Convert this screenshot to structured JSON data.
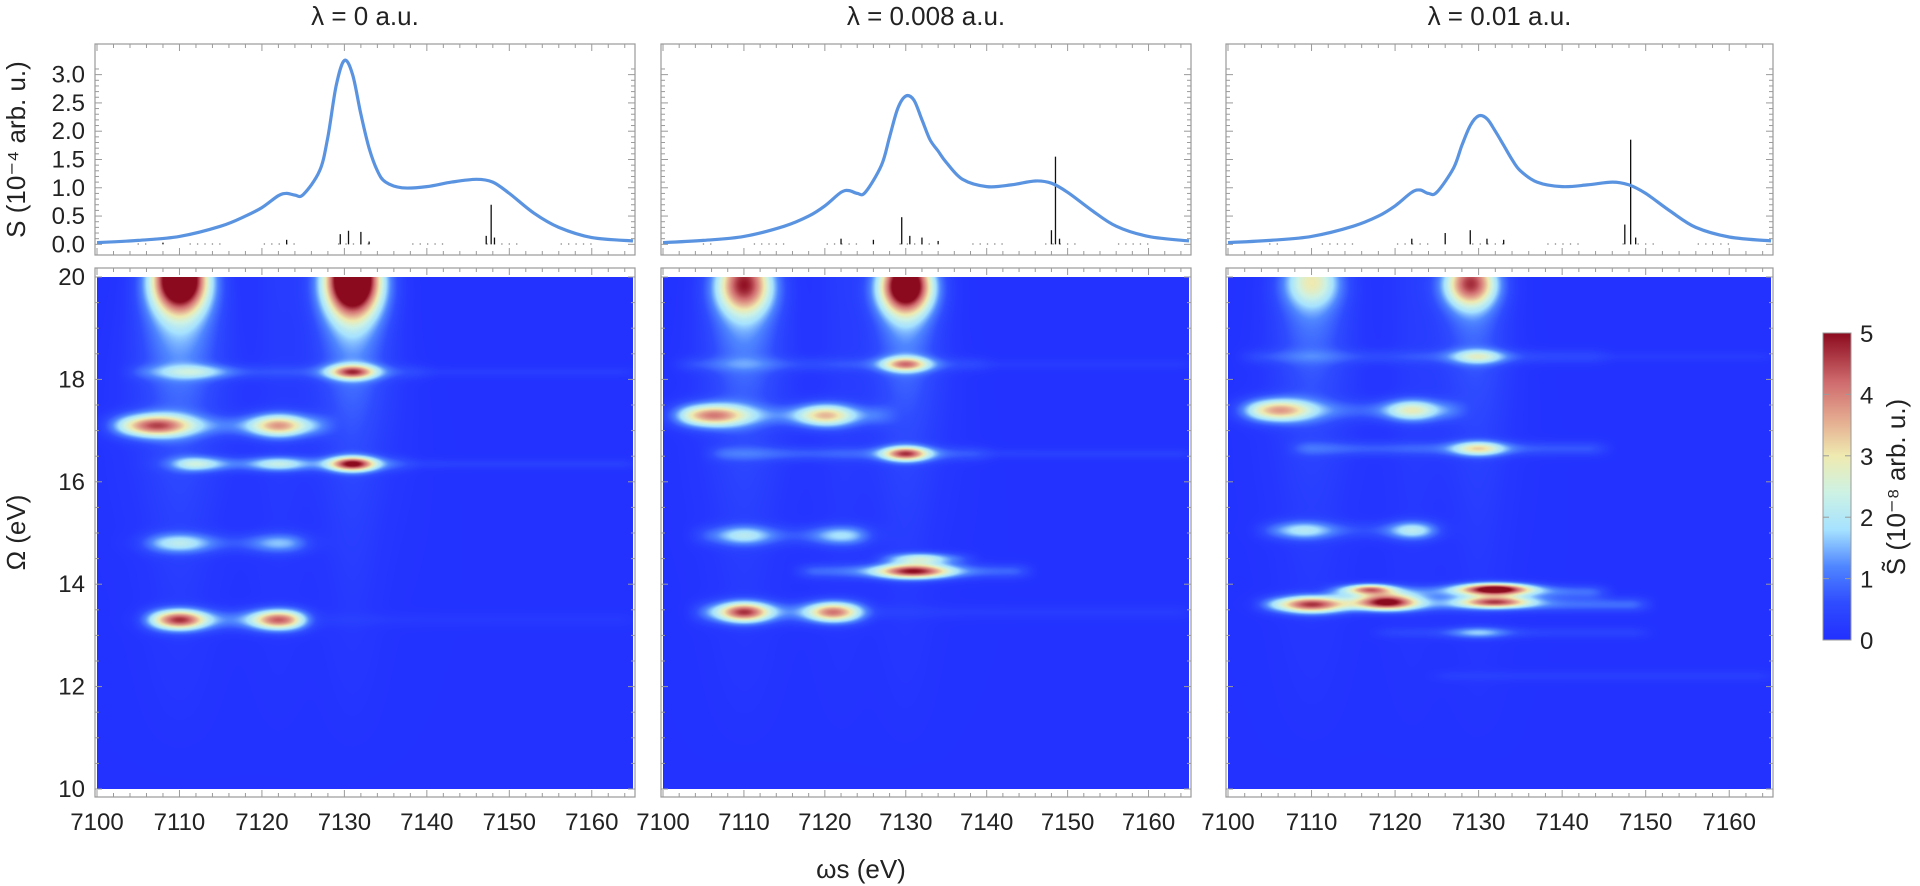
{
  "chart_data": [
    {
      "type": "line",
      "panel": 1,
      "title": "λ = 0 a.u.",
      "ylabel": "S (10⁻⁴ arb. u.)",
      "xlim": [
        7100,
        7165
      ],
      "ylim": [
        -0.1,
        3.4
      ],
      "yticks": [
        "0.0",
        "0.5",
        "1.0",
        "1.5",
        "2.0",
        "2.5",
        "3.0"
      ],
      "series": [
        {
          "x": [
            7100,
            7105,
            7110,
            7115,
            7118,
            7120,
            7122,
            7123,
            7124,
            7125,
            7127,
            7128,
            7129,
            7130,
            7131,
            7132,
            7133,
            7134,
            7135,
            7137,
            7140,
            7143,
            7146,
            7148,
            7150,
            7153,
            7156,
            7160,
            7165
          ],
          "y": [
            0.03,
            0.07,
            0.14,
            0.32,
            0.5,
            0.65,
            0.86,
            0.9,
            0.87,
            0.88,
            1.3,
            1.9,
            2.8,
            3.25,
            3.0,
            2.3,
            1.7,
            1.3,
            1.1,
            1.0,
            1.02,
            1.1,
            1.15,
            1.1,
            0.9,
            0.55,
            0.3,
            0.12,
            0.06
          ]
        }
      ],
      "sticks": [
        {
          "x": 7108,
          "y": 0.03
        },
        {
          "x": 7123,
          "y": 0.08
        },
        {
          "x": 7129.5,
          "y": 0.18
        },
        {
          "x": 7130.5,
          "y": 0.24
        },
        {
          "x": 7132,
          "y": 0.22
        },
        {
          "x": 7133,
          "y": 0.05
        },
        {
          "x": 7147.2,
          "y": 0.15
        },
        {
          "x": 7147.8,
          "y": 0.7
        },
        {
          "x": 7148.2,
          "y": 0.12
        }
      ]
    },
    {
      "type": "heatmap",
      "panel": 1,
      "xlabel": "",
      "ylabel": "Ω (eV)",
      "xlim": [
        7100,
        7165
      ],
      "ylim": [
        10,
        20
      ],
      "xticks": [
        "7100",
        "7110",
        "7120",
        "7130",
        "7140",
        "7150",
        "7160"
      ],
      "yticks": [
        "10",
        "12",
        "14",
        "16",
        "18",
        "20"
      ],
      "bands": [
        {
          "y": 13.3,
          "x0": 7106,
          "x1": 7125,
          "amp": 0.9,
          "w": 0.14
        },
        {
          "y": 13.3,
          "x0": 7128,
          "x1": 7165,
          "amp": 0.15,
          "w": 0.1
        },
        {
          "y": 14.8,
          "x0": 7106,
          "x1": 7125,
          "amp": 0.45,
          "w": 0.13
        },
        {
          "y": 16.35,
          "x0": 7110,
          "x1": 7138,
          "amp": 0.6,
          "w": 0.1
        },
        {
          "y": 16.35,
          "x0": 7138,
          "x1": 7165,
          "amp": 0.3,
          "w": 0.07
        },
        {
          "y": 17.1,
          "x0": 7102,
          "x1": 7128,
          "amp": 0.75,
          "w": 0.14
        },
        {
          "y": 18.15,
          "x0": 7104,
          "x1": 7140,
          "amp": 0.45,
          "w": 0.1
        },
        {
          "y": 18.15,
          "x0": 7140,
          "x1": 7165,
          "amp": 0.22,
          "w": 0.07
        }
      ],
      "spots": [
        {
          "x": 7110,
          "y": 13.3,
          "amp": 3.6,
          "sx": 2.3,
          "sy": 0.14
        },
        {
          "x": 7122,
          "y": 13.3,
          "amp": 3.3,
          "sx": 2.3,
          "sy": 0.14
        },
        {
          "x": 7110,
          "y": 14.8,
          "amp": 1.4,
          "sx": 2.8,
          "sy": 0.14
        },
        {
          "x": 7122,
          "y": 14.8,
          "amp": 1.0,
          "sx": 2.5,
          "sy": 0.14
        },
        {
          "x": 7112,
          "y": 16.35,
          "amp": 1.4,
          "sx": 2.5,
          "sy": 0.1
        },
        {
          "x": 7122,
          "y": 16.35,
          "amp": 1.5,
          "sx": 2.5,
          "sy": 0.1
        },
        {
          "x": 7131,
          "y": 16.35,
          "amp": 4.2,
          "sx": 2.0,
          "sy": 0.1
        },
        {
          "x": 7107,
          "y": 17.1,
          "amp": 3.3,
          "sx": 3.0,
          "sy": 0.16
        },
        {
          "x": 7122,
          "y": 17.1,
          "amp": 2.8,
          "sx": 2.5,
          "sy": 0.16
        },
        {
          "x": 7131,
          "y": 18.15,
          "amp": 3.3,
          "sx": 2.0,
          "sy": 0.1
        },
        {
          "x": 7112,
          "y": 18.15,
          "amp": 1.0,
          "sx": 3.0,
          "sy": 0.1
        },
        {
          "x": 7110,
          "y": 19.9,
          "amp": 4.4,
          "sx": 2.3,
          "sy": 0.4
        },
        {
          "x": 7131,
          "y": 19.9,
          "amp": 4.9,
          "sx": 2.4,
          "sy": 0.45
        }
      ],
      "plumes": [
        {
          "x": 7110,
          "y": 20,
          "amp": 2.4,
          "sx0": 2.5,
          "grow": 0.75,
          "decay": 1.5
        },
        {
          "x": 7131,
          "y": 20,
          "amp": 2.4,
          "sx0": 2.3,
          "grow": 0.6,
          "decay": 1.5
        }
      ],
      "columns": [
        {
          "x": 7110,
          "amp": 0.45,
          "sx": 2.8
        },
        {
          "x": 7131,
          "amp": 0.4,
          "sx": 2.3
        },
        {
          "x": 7122,
          "amp": 0.2,
          "sx": 2.2
        }
      ]
    },
    {
      "type": "line",
      "panel": 2,
      "title": "λ = 0.008 a.u.",
      "xlim": [
        7100,
        7165
      ],
      "ylim": [
        -0.1,
        3.4
      ],
      "yticks": [
        "0.0",
        "0.5",
        "1.0",
        "1.5",
        "2.0",
        "2.5",
        "3.0"
      ],
      "series": [
        {
          "x": [
            7100,
            7105,
            7110,
            7115,
            7118,
            7120,
            7122,
            7123,
            7124,
            7125,
            7127,
            7128,
            7129,
            7130,
            7131,
            7132,
            7133,
            7134,
            7135,
            7137,
            7140,
            7143,
            7146,
            7148,
            7150,
            7153,
            7156,
            7160,
            7165
          ],
          "y": [
            0.03,
            0.07,
            0.14,
            0.32,
            0.5,
            0.68,
            0.92,
            0.95,
            0.9,
            0.92,
            1.4,
            1.9,
            2.4,
            2.62,
            2.55,
            2.2,
            1.85,
            1.65,
            1.45,
            1.15,
            1.02,
            1.05,
            1.12,
            1.08,
            0.92,
            0.6,
            0.32,
            0.14,
            0.06
          ]
        }
      ],
      "sticks": [
        {
          "x": 7122,
          "y": 0.1
        },
        {
          "x": 7126,
          "y": 0.08
        },
        {
          "x": 7129.5,
          "y": 0.48
        },
        {
          "x": 7130.5,
          "y": 0.15
        },
        {
          "x": 7132,
          "y": 0.12
        },
        {
          "x": 7134,
          "y": 0.06
        },
        {
          "x": 7148,
          "y": 0.25
        },
        {
          "x": 7148.5,
          "y": 1.55
        },
        {
          "x": 7149,
          "y": 0.1
        }
      ]
    },
    {
      "type": "heatmap",
      "panel": 2,
      "xlim": [
        7100,
        7165
      ],
      "ylim": [
        10,
        20
      ],
      "xticks": [
        "7100",
        "7110",
        "7120",
        "7130",
        "7140",
        "7150",
        "7160"
      ],
      "bands": [
        {
          "y": 13.45,
          "x0": 7104,
          "x1": 7125,
          "amp": 0.8,
          "w": 0.14
        },
        {
          "y": 13.45,
          "x0": 7125,
          "x1": 7165,
          "amp": 0.2,
          "w": 0.1
        },
        {
          "y": 14.25,
          "x0": 7117,
          "x1": 7145,
          "amp": 0.8,
          "w": 0.1
        },
        {
          "y": 14.5,
          "x0": 7127,
          "x1": 7138,
          "amp": 0.5,
          "w": 0.08
        },
        {
          "y": 14.95,
          "x0": 7104,
          "x1": 7125,
          "amp": 0.5,
          "w": 0.13
        },
        {
          "y": 16.55,
          "x0": 7106,
          "x1": 7140,
          "amp": 0.65,
          "w": 0.1
        },
        {
          "y": 16.55,
          "x0": 7140,
          "x1": 7165,
          "amp": 0.3,
          "w": 0.07
        },
        {
          "y": 17.3,
          "x0": 7102,
          "x1": 7128,
          "amp": 0.7,
          "w": 0.14
        },
        {
          "y": 18.3,
          "x0": 7102,
          "x1": 7140,
          "amp": 0.45,
          "w": 0.1
        },
        {
          "y": 18.3,
          "x0": 7140,
          "x1": 7165,
          "amp": 0.2,
          "w": 0.07
        }
      ],
      "spots": [
        {
          "x": 7110,
          "y": 13.45,
          "amp": 3.7,
          "sx": 2.3,
          "sy": 0.14
        },
        {
          "x": 7121,
          "y": 13.45,
          "amp": 3.2,
          "sx": 2.3,
          "sy": 0.14
        },
        {
          "x": 7131,
          "y": 14.25,
          "amp": 4.0,
          "sx": 3.2,
          "sy": 0.1
        },
        {
          "x": 7132,
          "y": 14.5,
          "amp": 1.6,
          "sx": 2.5,
          "sy": 0.08
        },
        {
          "x": 7110,
          "y": 14.95,
          "amp": 1.3,
          "sx": 2.5,
          "sy": 0.14
        },
        {
          "x": 7122,
          "y": 14.95,
          "amp": 1.2,
          "sx": 2.5,
          "sy": 0.14
        },
        {
          "x": 7130,
          "y": 16.55,
          "amp": 3.6,
          "sx": 2.0,
          "sy": 0.1
        },
        {
          "x": 7106,
          "y": 17.3,
          "amp": 3.0,
          "sx": 3.0,
          "sy": 0.16
        },
        {
          "x": 7120,
          "y": 17.3,
          "amp": 2.6,
          "sx": 2.5,
          "sy": 0.16
        },
        {
          "x": 7130,
          "y": 18.3,
          "amp": 2.8,
          "sx": 2.0,
          "sy": 0.1
        },
        {
          "x": 7110,
          "y": 19.8,
          "amp": 2.8,
          "sx": 2.4,
          "sy": 0.35
        },
        {
          "x": 7130,
          "y": 19.8,
          "amp": 4.4,
          "sx": 2.3,
          "sy": 0.35
        }
      ],
      "plumes": [
        {
          "x": 7110,
          "y": 20,
          "amp": 1.9,
          "sx0": 2.4,
          "grow": 0.7,
          "decay": 1.5
        },
        {
          "x": 7130,
          "y": 20,
          "amp": 2.0,
          "sx0": 2.2,
          "grow": 0.6,
          "decay": 1.5
        }
      ],
      "columns": [
        {
          "x": 7110,
          "amp": 0.4,
          "sx": 2.8
        },
        {
          "x": 7130,
          "amp": 0.35,
          "sx": 2.3
        },
        {
          "x": 7122,
          "amp": 0.2,
          "sx": 2.2
        }
      ]
    },
    {
      "type": "line",
      "panel": 3,
      "title": "λ = 0.01 a.u.",
      "xlim": [
        7100,
        7165
      ],
      "ylim": [
        -0.1,
        3.4
      ],
      "yticks": [
        "0.0",
        "0.5",
        "1.0",
        "1.5",
        "2.0",
        "2.5",
        "3.0"
      ],
      "series": [
        {
          "x": [
            7100,
            7105,
            7110,
            7115,
            7118,
            7120,
            7122,
            7123,
            7124,
            7125,
            7127,
            7128,
            7129,
            7130,
            7131,
            7132,
            7133,
            7134,
            7135,
            7137,
            7140,
            7143,
            7146,
            7148,
            7150,
            7153,
            7156,
            7160,
            7165
          ],
          "y": [
            0.03,
            0.07,
            0.14,
            0.32,
            0.5,
            0.68,
            0.92,
            0.96,
            0.9,
            0.92,
            1.35,
            1.75,
            2.1,
            2.27,
            2.22,
            2.0,
            1.75,
            1.5,
            1.3,
            1.1,
            1.02,
            1.05,
            1.1,
            1.05,
            0.9,
            0.58,
            0.3,
            0.13,
            0.06
          ]
        }
      ],
      "sticks": [
        {
          "x": 7122,
          "y": 0.1
        },
        {
          "x": 7126,
          "y": 0.2
        },
        {
          "x": 7129,
          "y": 0.25
        },
        {
          "x": 7131,
          "y": 0.1
        },
        {
          "x": 7133,
          "y": 0.08
        },
        {
          "x": 7147.5,
          "y": 0.35
        },
        {
          "x": 7148.2,
          "y": 1.85
        },
        {
          "x": 7148.8,
          "y": 0.12
        }
      ]
    },
    {
      "type": "heatmap",
      "panel": 3,
      "xlim": [
        7100,
        7165
      ],
      "ylim": [
        10,
        20
      ],
      "xticks": [
        "7100",
        "7110",
        "7120",
        "7130",
        "7140",
        "7150",
        "7160"
      ],
      "bands": [
        {
          "y": 12.2,
          "x0": 7125,
          "x1": 7165,
          "amp": 0.25,
          "w": 0.08
        },
        {
          "y": 13.05,
          "x0": 7118,
          "x1": 7150,
          "amp": 0.35,
          "w": 0.08
        },
        {
          "y": 13.6,
          "x0": 7104,
          "x1": 7150,
          "amp": 0.9,
          "w": 0.1
        },
        {
          "y": 13.85,
          "x0": 7112,
          "x1": 7145,
          "amp": 0.9,
          "w": 0.09
        },
        {
          "y": 15.05,
          "x0": 7104,
          "x1": 7125,
          "amp": 0.5,
          "w": 0.12
        },
        {
          "y": 16.65,
          "x0": 7108,
          "x1": 7145,
          "amp": 0.65,
          "w": 0.1
        },
        {
          "y": 17.4,
          "x0": 7102,
          "x1": 7128,
          "amp": 0.65,
          "w": 0.14
        },
        {
          "y": 18.45,
          "x0": 7102,
          "x1": 7145,
          "amp": 0.45,
          "w": 0.1
        },
        {
          "y": 18.45,
          "x0": 7145,
          "x1": 7165,
          "amp": 0.2,
          "w": 0.07
        }
      ],
      "spots": [
        {
          "x": 7110,
          "y": 13.6,
          "amp": 3.6,
          "sx": 2.8,
          "sy": 0.12
        },
        {
          "x": 7119,
          "y": 13.65,
          "amp": 4.4,
          "sx": 2.6,
          "sy": 0.11
        },
        {
          "x": 7132,
          "y": 13.65,
          "amp": 3.6,
          "sx": 3.0,
          "sy": 0.08
        },
        {
          "x": 7117,
          "y": 13.9,
          "amp": 3.2,
          "sx": 2.0,
          "sy": 0.07
        },
        {
          "x": 7132,
          "y": 13.9,
          "amp": 4.9,
          "sx": 3.0,
          "sy": 0.08
        },
        {
          "x": 7130,
          "y": 13.05,
          "amp": 1.2,
          "sx": 2.5,
          "sy": 0.08
        },
        {
          "x": 7109,
          "y": 15.05,
          "amp": 1.3,
          "sx": 2.5,
          "sy": 0.13
        },
        {
          "x": 7122,
          "y": 15.05,
          "amp": 1.5,
          "sx": 2.0,
          "sy": 0.13
        },
        {
          "x": 7130,
          "y": 16.65,
          "amp": 2.2,
          "sx": 2.2,
          "sy": 0.1
        },
        {
          "x": 7106,
          "y": 17.4,
          "amp": 2.8,
          "sx": 2.8,
          "sy": 0.16
        },
        {
          "x": 7122,
          "y": 17.4,
          "amp": 2.0,
          "sx": 2.3,
          "sy": 0.15
        },
        {
          "x": 7130,
          "y": 18.45,
          "amp": 1.6,
          "sx": 2.2,
          "sy": 0.1
        },
        {
          "x": 7110,
          "y": 19.85,
          "amp": 1.4,
          "sx": 2.4,
          "sy": 0.3
        },
        {
          "x": 7129,
          "y": 19.85,
          "amp": 3.2,
          "sx": 2.2,
          "sy": 0.3
        }
      ],
      "plumes": [
        {
          "x": 7110,
          "y": 20,
          "amp": 1.3,
          "sx0": 2.4,
          "grow": 0.7,
          "decay": 1.5
        },
        {
          "x": 7129,
          "y": 20,
          "amp": 1.3,
          "sx0": 2.2,
          "grow": 0.6,
          "decay": 1.5
        }
      ],
      "columns": [
        {
          "x": 7110,
          "amp": 0.35,
          "sx": 2.8
        },
        {
          "x": 7130,
          "amp": 0.3,
          "sx": 2.3
        },
        {
          "x": 7122,
          "amp": 0.2,
          "sx": 2.2
        }
      ]
    }
  ],
  "shared": {
    "xlabel": "ωs (eV)",
    "colorbar": {
      "label": "S̃ (10⁻⁸ arb. u.)",
      "range": [
        0,
        5
      ],
      "ticks": [
        "0",
        "1",
        "2",
        "3",
        "4",
        "5"
      ]
    }
  }
}
